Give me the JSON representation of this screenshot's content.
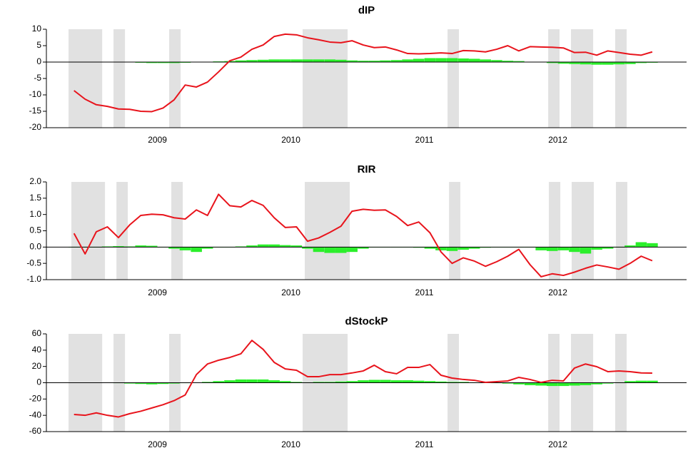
{
  "chart_data": [
    {
      "type": "line",
      "title": "dIP",
      "x": [
        2008.875,
        2008.958,
        2009.042,
        2009.125,
        2009.208,
        2009.292,
        2009.375,
        2009.458,
        2009.542,
        2009.625,
        2009.708,
        2009.792,
        2009.875,
        2009.958,
        2010.042,
        2010.125,
        2010.208,
        2010.292,
        2010.375,
        2010.458,
        2010.542,
        2010.625,
        2010.708,
        2010.792,
        2010.875,
        2010.958,
        2011.042,
        2011.125,
        2011.208,
        2011.292,
        2011.375,
        2011.458,
        2011.542,
        2011.625,
        2011.708,
        2011.792,
        2011.875,
        2011.958,
        2012.042,
        2012.125,
        2012.208,
        2012.292,
        2012.375,
        2012.458,
        2012.542,
        2012.625,
        2012.708,
        2012.792,
        2012.875,
        2012.958,
        2013.042,
        2013.125,
        2013.208
      ],
      "series": [
        {
          "type": "bar",
          "color": "#2bef2b",
          "values": [
            0,
            -0.1,
            -0.1,
            0,
            0.1,
            -0.1,
            -0.2,
            -0.3,
            -0.3,
            -0.3,
            -0.2,
            -0.1,
            0.1,
            0.2,
            0.3,
            0.5,
            0.6,
            0.7,
            0.8,
            0.8,
            0.8,
            0.8,
            0.8,
            0.8,
            0.7,
            0.5,
            0.4,
            0.4,
            0.5,
            0.6,
            0.8,
            1.0,
            1.2,
            1.2,
            1.2,
            1.1,
            1.0,
            0.8,
            0.6,
            0.4,
            0.3,
            0.1,
            -0.1,
            -0.3,
            -0.5,
            -0.6,
            -0.7,
            -0.8,
            -0.8,
            -0.7,
            -0.6,
            -0.3,
            -0.2
          ]
        },
        {
          "type": "line",
          "color": "#e8141c",
          "values": [
            -8.7,
            -11.3,
            -13,
            -13.5,
            -14.3,
            -14.4,
            -15,
            -15.1,
            -14,
            -11.5,
            -7,
            -7.6,
            -6.1,
            -3,
            0.4,
            1.5,
            3.9,
            5.2,
            7.8,
            8.5,
            8.3,
            7.4,
            6.8,
            6.1,
            5.9,
            6.5,
            5.2,
            4.4,
            4.6,
            3.7,
            2.6,
            2.5,
            2.6,
            2.8,
            2.6,
            3.5,
            3.4,
            3.1,
            3.9,
            5,
            3.4,
            4.7,
            4.6,
            4.5,
            4.3,
            2.9,
            3.0,
            2.1,
            3.4,
            2.9,
            2.4,
            2.1,
            3.1
          ]
        }
      ],
      "shaded": [
        [
          2008.834,
          2009.086
        ],
        [
          2009.171,
          2009.257
        ],
        [
          2009.588,
          2009.674
        ],
        [
          2010.588,
          2010.925
        ],
        [
          2011.674,
          2011.759
        ],
        [
          2012.428,
          2012.513
        ],
        [
          2012.599,
          2012.765
        ],
        [
          2012.93,
          2013.016
        ]
      ],
      "xlim": [
        2008.668,
        2013.465
      ],
      "xticks": [
        {
          "value": 2009.5,
          "label": "2009"
        },
        {
          "value": 2010.5,
          "label": "2010"
        },
        {
          "value": 2011.5,
          "label": "2011"
        },
        {
          "value": 2012.5,
          "label": "2012"
        }
      ],
      "ylim": [
        -20,
        10
      ],
      "yticks": [
        10,
        5,
        0,
        -5,
        -10,
        -15,
        -20
      ]
    },
    {
      "type": "line",
      "title": "RIR",
      "x": [
        2008.875,
        2008.958,
        2009.042,
        2009.125,
        2009.208,
        2009.292,
        2009.375,
        2009.458,
        2009.542,
        2009.625,
        2009.708,
        2009.792,
        2009.875,
        2009.958,
        2010.042,
        2010.125,
        2010.208,
        2010.292,
        2010.375,
        2010.458,
        2010.542,
        2010.625,
        2010.708,
        2010.792,
        2010.875,
        2010.958,
        2011.042,
        2011.125,
        2011.208,
        2011.292,
        2011.375,
        2011.458,
        2011.542,
        2011.625,
        2011.708,
        2011.792,
        2011.875,
        2011.958,
        2012.042,
        2012.125,
        2012.208,
        2012.292,
        2012.375,
        2012.458,
        2012.542,
        2012.625,
        2012.708,
        2012.792,
        2012.875,
        2012.958,
        2013.042,
        2013.125,
        2013.208
      ],
      "series": [
        {
          "type": "bar",
          "color": "#2bef2b",
          "values": [
            0,
            0,
            0,
            0.02,
            0.03,
            0.02,
            0.05,
            0.04,
            0,
            -0.05,
            -0.1,
            -0.15,
            -0.05,
            0,
            0,
            0.02,
            0.05,
            0.08,
            0.08,
            0.06,
            0.05,
            -0.05,
            -0.15,
            -0.18,
            -0.18,
            -0.15,
            -0.05,
            0,
            0,
            0,
            0,
            -0.02,
            -0.05,
            -0.1,
            -0.12,
            -0.08,
            -0.05,
            -0.02,
            0,
            0,
            0,
            0,
            -0.1,
            -0.12,
            -0.1,
            -0.15,
            -0.2,
            -0.08,
            -0.05,
            0,
            0.05,
            0.15,
            0.12
          ]
        },
        {
          "type": "line",
          "color": "#e8141c",
          "values": [
            0.42,
            -0.21,
            0.47,
            0.62,
            0.29,
            0.68,
            0.97,
            1.01,
            0.99,
            0.9,
            0.86,
            1.14,
            0.97,
            1.62,
            1.27,
            1.23,
            1.43,
            1.28,
            0.9,
            0.6,
            0.62,
            0.18,
            0.28,
            0.45,
            0.64,
            1.1,
            1.16,
            1.13,
            1.14,
            0.94,
            0.66,
            0.77,
            0.44,
            -0.15,
            -0.5,
            -0.33,
            -0.43,
            -0.59,
            -0.45,
            -0.28,
            -0.07,
            -0.54,
            -0.91,
            -0.82,
            -0.87,
            -0.77,
            -0.65,
            -0.55,
            -0.61,
            -0.68,
            -0.5,
            -0.28,
            -0.42
          ]
        }
      ],
      "shaded": [
        [
          2008.855,
          2009.107
        ],
        [
          2009.193,
          2009.278
        ],
        [
          2009.604,
          2009.69
        ],
        [
          2010.604,
          2010.941
        ],
        [
          2011.685,
          2011.77
        ],
        [
          2012.433,
          2012.519
        ],
        [
          2012.604,
          2012.77
        ],
        [
          2012.936,
          2013.021
        ]
      ],
      "xlim": [
        2008.668,
        2013.465
      ],
      "xticks": [
        {
          "value": 2009.5,
          "label": "2009"
        },
        {
          "value": 2010.5,
          "label": "2010"
        },
        {
          "value": 2011.5,
          "label": "2011"
        },
        {
          "value": 2012.5,
          "label": "2012"
        }
      ],
      "ylim": [
        -1,
        2
      ],
      "yticks": [
        {
          "value": 2,
          "label": "2.0"
        },
        1.5,
        {
          "value": 1,
          "label": "1.0"
        },
        0.5,
        {
          "value": 0,
          "label": "0.0"
        },
        -0.5,
        {
          "value": -1,
          "label": "-1.0"
        }
      ]
    },
    {
      "type": "line",
      "title": "dStockP",
      "x": [
        2008.875,
        2008.958,
        2009.042,
        2009.125,
        2009.208,
        2009.292,
        2009.375,
        2009.458,
        2009.542,
        2009.625,
        2009.708,
        2009.792,
        2009.875,
        2009.958,
        2010.042,
        2010.125,
        2010.208,
        2010.292,
        2010.375,
        2010.458,
        2010.542,
        2010.625,
        2010.708,
        2010.792,
        2010.875,
        2010.958,
        2011.042,
        2011.125,
        2011.208,
        2011.292,
        2011.375,
        2011.458,
        2011.542,
        2011.625,
        2011.708,
        2011.792,
        2011.875,
        2011.958,
        2012.042,
        2012.125,
        2012.208,
        2012.292,
        2012.375,
        2012.458,
        2012.542,
        2012.625,
        2012.708,
        2012.792,
        2012.875,
        2012.958,
        2013.042,
        2013.125,
        2013.208
      ],
      "series": [
        {
          "type": "bar",
          "color": "#2bef2b",
          "values": [
            0,
            0,
            0,
            0,
            -0.5,
            -1,
            -1.5,
            -2,
            -1.5,
            -1,
            -0.5,
            0,
            1,
            2,
            3,
            4,
            4,
            4,
            3,
            2,
            1,
            0.5,
            1,
            1,
            1.5,
            2,
            3,
            3.5,
            3.5,
            3,
            3,
            2.5,
            2,
            1.5,
            1,
            1,
            0.5,
            0,
            -0.5,
            -1,
            -2,
            -3,
            -3.5,
            -4,
            -4,
            -3.5,
            -3,
            -2,
            -1,
            0.5,
            2,
            2.5,
            2.5
          ]
        },
        {
          "type": "line",
          "color": "#e8141c",
          "values": [
            -39,
            -40,
            -37,
            -40,
            -42,
            -38,
            -35,
            -31,
            -27,
            -22,
            -15,
            10,
            23,
            27.6,
            31,
            35.5,
            52,
            41,
            25,
            17,
            15.3,
            7.4,
            7.4,
            10,
            10,
            12,
            14.5,
            21.5,
            13.6,
            11,
            18.8,
            18.8,
            22.3,
            9.2,
            5.7,
            4,
            3,
            0.4,
            1.3,
            2.2,
            6.6,
            4,
            0.4,
            3,
            2.2,
            18,
            23,
            19.7,
            13.6,
            14.5,
            13.6,
            12,
            11.8
          ]
        }
      ],
      "shaded": [
        [
          2008.834,
          2009.086
        ],
        [
          2009.171,
          2009.257
        ],
        [
          2009.588,
          2009.674
        ],
        [
          2010.588,
          2010.925
        ],
        [
          2011.674,
          2011.759
        ],
        [
          2012.428,
          2012.513
        ],
        [
          2012.599,
          2012.765
        ],
        [
          2012.93,
          2013.016
        ]
      ],
      "xlim": [
        2008.668,
        2013.465
      ],
      "xticks": [
        {
          "value": 2009.5,
          "label": "2009"
        },
        {
          "value": 2010.5,
          "label": "2010"
        },
        {
          "value": 2011.5,
          "label": "2011"
        },
        {
          "value": 2012.5,
          "label": "2012"
        }
      ],
      "ylim": [
        -60,
        60
      ],
      "yticks": [
        60,
        40,
        20,
        0,
        -20,
        -40,
        -60
      ]
    }
  ]
}
